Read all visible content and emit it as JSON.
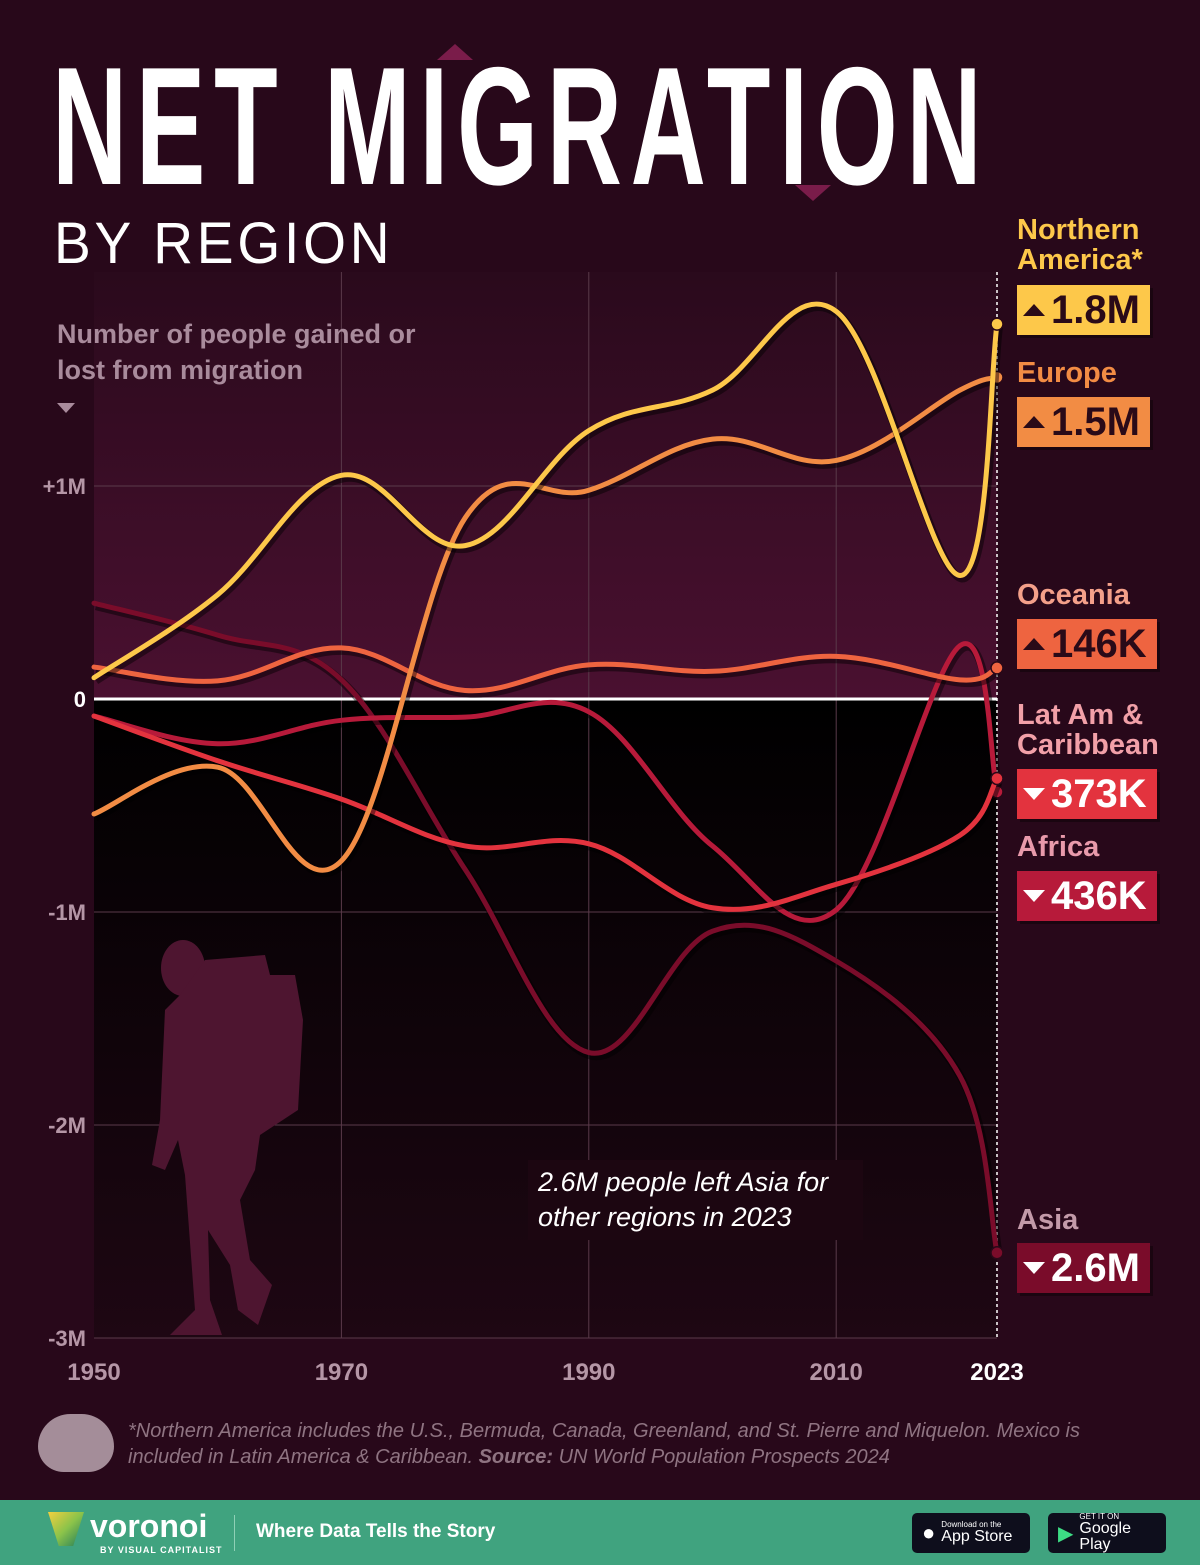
{
  "title": "NET MIGRATION",
  "subtitle": "BY REGION",
  "y_label": "Number of people gained or lost from migration",
  "annotation": "2.6M people left Asia for other regions in 2023",
  "footnote": "*Northern America includes the U.S., Bermuda, Canada, Greenland, and St. Pierre and Miquelon. Mexico is included in Latin America & Caribbean.",
  "source_label": "Source:",
  "source": "UN World Population Prospects 2024",
  "brand": {
    "name": "voronoi",
    "by": "BY VISUAL CAPITALIST",
    "tagline": "Where Data Tells the Story",
    "app_store_small": "Download on the",
    "app_store": "App Store",
    "google_small": "GET IT ON",
    "google": "Google Play"
  },
  "chart_data": {
    "type": "line",
    "title": "NET MIGRATION BY REGION",
    "ylabel": "Number of people gained or lost from migration",
    "xlabel": "",
    "x": [
      1950,
      1960,
      1970,
      1980,
      1990,
      2000,
      2010,
      2020,
      2023
    ],
    "x_ticks": [
      "1950",
      "1970",
      "1990",
      "2010",
      "2023"
    ],
    "y_ticks": [
      {
        "v": 1,
        "label": "+1M"
      },
      {
        "v": 0,
        "label": "0"
      },
      {
        "v": -1,
        "label": "-1M"
      },
      {
        "v": -2,
        "label": "-2M"
      },
      {
        "v": -3,
        "label": "-3M"
      }
    ],
    "ylim": [
      -3,
      2
    ],
    "xlim": [
      1950,
      2023
    ],
    "units": "millions of people",
    "grid": true,
    "legend": "right (direct labels)",
    "series": [
      {
        "name": "Northern America*",
        "line1": "Northern",
        "line2": "America*",
        "final": "1.8M",
        "dir": "up",
        "color": "#fdc84a",
        "text": "#2a0a18",
        "labelColor": "#fdc84a",
        "values": [
          0.1,
          0.49,
          1.05,
          0.72,
          1.26,
          1.45,
          1.82,
          0.58,
          1.76
        ]
      },
      {
        "name": "Europe",
        "line1": "Europe",
        "line2": "",
        "final": "1.5M",
        "dir": "up",
        "color": "#f28c44",
        "text": "#2a0a18",
        "labelColor": "#f28c44",
        "values": [
          -0.54,
          -0.32,
          -0.76,
          0.85,
          0.98,
          1.22,
          1.12,
          1.45,
          1.51
        ]
      },
      {
        "name": "Oceania",
        "line1": "Oceania",
        "line2": "",
        "final": "146K",
        "dir": "up",
        "color": "#ee6440",
        "text": "#2a0a18",
        "labelColor": "#f4a08a",
        "values": [
          0.15,
          0.085,
          0.24,
          0.04,
          0.16,
          0.13,
          0.2,
          0.09,
          0.146
        ]
      },
      {
        "name": "Lat Am & Caribbean",
        "line1": "Lat Am &",
        "line2": "Caribbean",
        "final": "373K",
        "dir": "down",
        "color": "#e3333e",
        "text": "#ffffff",
        "labelColor": "#f2a0a8",
        "values": [
          -0.08,
          -0.29,
          -0.47,
          -0.69,
          -0.68,
          -0.98,
          -0.87,
          -0.64,
          -0.373
        ]
      },
      {
        "name": "Africa",
        "line1": "Africa",
        "line2": "",
        "final": "436K",
        "dir": "down",
        "color": "#b71a3a",
        "text": "#ffffff",
        "labelColor": "#e89aab",
        "values": [
          -0.08,
          -0.21,
          -0.1,
          -0.085,
          -0.06,
          -0.69,
          -0.99,
          0.25,
          -0.436
        ]
      },
      {
        "name": "Asia",
        "line1": "Asia",
        "line2": "",
        "final": "2.6M",
        "dir": "down",
        "color": "#7a0c2a",
        "text": "#ffffff",
        "labelColor": "#c39aa9",
        "values": [
          0.45,
          0.3,
          0.09,
          -0.8,
          -1.66,
          -1.09,
          -1.23,
          -1.77,
          -2.6
        ]
      }
    ]
  }
}
